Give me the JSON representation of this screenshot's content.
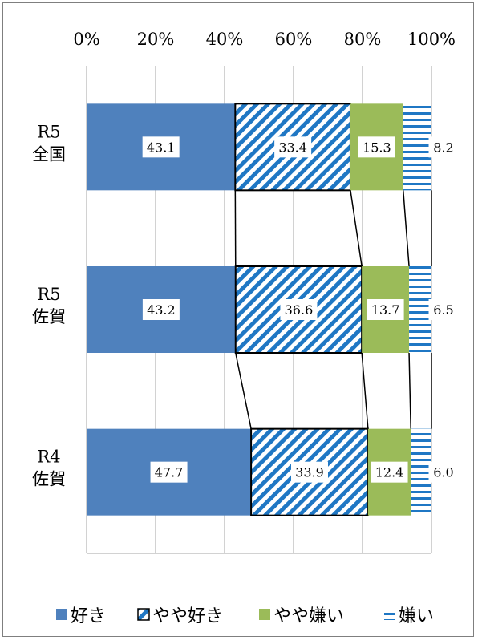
{
  "chart_data": {
    "type": "bar",
    "orientation": "horizontal",
    "stacked": "percent",
    "categories": [
      [
        "R5",
        "全国"
      ],
      [
        "R5",
        "佐賀"
      ],
      [
        "R4",
        "佐賀"
      ]
    ],
    "series": [
      {
        "name": "好き",
        "values": [
          43.1,
          43.2,
          47.7
        ],
        "color": "#4f81bd",
        "pattern": "solid"
      },
      {
        "name": "やや好き",
        "values": [
          33.4,
          36.6,
          33.9
        ],
        "color": "#1f77c4",
        "pattern": "diagonal-stripes"
      },
      {
        "name": "やや嫌い",
        "values": [
          15.3,
          13.7,
          12.4
        ],
        "color": "#9bbb59",
        "pattern": "solid"
      },
      {
        "name": "嫌い",
        "values": [
          8.2,
          6.5,
          6.0
        ],
        "color": "#1f77c4",
        "pattern": "horizontal-lines"
      }
    ],
    "xlim": [
      0,
      100
    ],
    "xticks": [
      "0%",
      "20%",
      "40%",
      "60%",
      "80%",
      "100%"
    ],
    "x_axis_position": "top",
    "grid": true,
    "series_lines": true,
    "legend": "bottom"
  }
}
